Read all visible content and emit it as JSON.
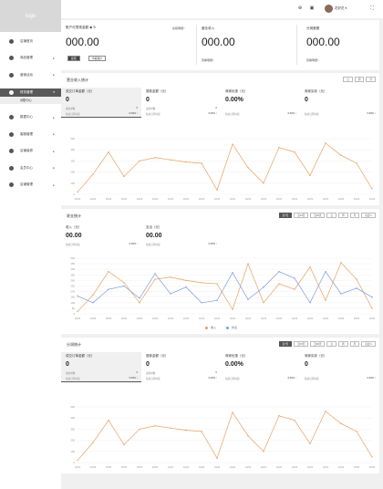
{
  "sidebar": {
    "logo": "logo",
    "items": [
      {
        "label": "店铺首页",
        "icon": "home-icon",
        "arrow": ""
      },
      {
        "label": "商品管理",
        "icon": "goods-icon",
        "arrow": "▸"
      },
      {
        "label": "营销活动",
        "icon": "marketing-icon",
        "arrow": "▸"
      },
      {
        "label": "财务管理",
        "icon": "finance-icon",
        "arrow": "▾"
      },
      {
        "label": "数据中心",
        "icon": "data-icon",
        "arrow": "▸"
      },
      {
        "label": "客服管理",
        "icon": "service-icon",
        "arrow": "▸"
      },
      {
        "label": "店铺装修",
        "icon": "decor-icon",
        "arrow": "▸"
      },
      {
        "label": "会员中心",
        "icon": "member-icon",
        "arrow": "▸"
      },
      {
        "label": "店铺管理",
        "icon": "shop-icon",
        "arrow": "▸"
      }
    ],
    "sub_item": "对账中心"
  },
  "topbar": {
    "username": "花好花",
    "caret": "▾"
  },
  "account": {
    "cards": [
      {
        "label": "账户可提现金额",
        "value": "000.00",
        "link": "余额明细>"
      },
      {
        "label": "营业收入",
        "value": "000.00",
        "link": "查看明细>"
      },
      {
        "label": "分润差额",
        "value": "000.00",
        "link": "查看明细>"
      }
    ],
    "withdraw_btn": "提现",
    "view_btn": "查看账户"
  },
  "revenue": {
    "title": "营业收入统计",
    "tabs": [
      "日",
      "周",
      "月"
    ],
    "metrics": [
      {
        "label": "成交订单金额（元）",
        "value": "0",
        "sub1": "成交单数",
        "r1": "0",
        "sub2": "较前日同时段",
        "r2": "0.00% ↑"
      },
      {
        "label": "退款金额（元）",
        "value": "0",
        "sub1": "退款单数",
        "r1": "0",
        "sub2": "较前日同时段",
        "r2": "0.00% ↑"
      },
      {
        "label": "商家优惠（元）",
        "value": "0.00%",
        "sub1": "",
        "r1": "",
        "sub2": "较前日同时段",
        "r2": "0.00% ↑"
      },
      {
        "label": "商家实收（元）",
        "value": "0",
        "sub1": "",
        "r1": "",
        "sub2": "较前日同时段",
        "r2": "0.00% ↑"
      }
    ]
  },
  "income": {
    "title": "收支统计",
    "tabs": [
      "近7天",
      "近15天",
      "近30天",
      "日",
      "周",
      "月",
      "自定义"
    ],
    "metrics": [
      {
        "label": "收入（元）",
        "value": "00.00",
        "sub": "较前日同时段",
        "r": "0.00% ↑"
      },
      {
        "label": "支出（元）",
        "value": "00.00",
        "sub": "较前日同时段",
        "r": "0.00% ↑"
      }
    ],
    "legend": [
      {
        "name": "收入",
        "color": "#e8a060"
      },
      {
        "name": "支出",
        "color": "#7b9be0"
      }
    ]
  },
  "profit": {
    "title": "分润统计",
    "tabs": [
      "近7天",
      "近15天",
      "近30天",
      "日",
      "周",
      "月",
      "自定义"
    ],
    "metrics": [
      {
        "label": "成交订单金额（元）",
        "value": "0",
        "sub1": "成交单数",
        "r1": "0",
        "sub2": "较前日同时段",
        "r2": "0.00% ↑"
      },
      {
        "label": "退款金额（元）",
        "value": "0",
        "sub1": "退款单数",
        "r1": "0",
        "sub2": "较前日同时段",
        "r2": "0.00% ↑"
      },
      {
        "label": "商家优惠（元）",
        "value": "0.00%",
        "sub1": "",
        "r1": "",
        "sub2": "较前日同时段",
        "r2": "0.00% ↑"
      },
      {
        "label": "商家实收（元）",
        "value": "0",
        "sub1": "",
        "r1": "",
        "sub2": "较前日同时段",
        "r2": "0.00% ↑"
      }
    ]
  },
  "chart_data": [
    {
      "type": "line",
      "ylim": [
        0,
        500
      ],
      "yticks": [
        0,
        100,
        200,
        300,
        400,
        500
      ],
      "categories": [
        "10/22",
        "10/22",
        "10/22",
        "10/22",
        "10/22",
        "10/22",
        "10/22",
        "10/22",
        "10/22",
        "10/22",
        "10/22",
        "10/22",
        "10/22",
        "10/22",
        "10/22",
        "10/22",
        "10/22",
        "10/22",
        "10/22",
        "10/22"
      ],
      "series": [
        {
          "color": "#e8a060",
          "x": [
            0,
            1,
            2,
            3,
            4,
            5,
            6,
            7,
            8,
            9,
            10,
            11,
            12,
            13,
            14,
            15,
            16,
            17,
            18,
            19
          ],
          "values": [
            20,
            180,
            380,
            160,
            300,
            330,
            310,
            290,
            280,
            40,
            450,
            240,
            100,
            420,
            380,
            170,
            460,
            350,
            280,
            50
          ]
        }
      ]
    },
    {
      "type": "line",
      "ylim": [
        0,
        500
      ],
      "yticks": [
        0,
        50,
        100,
        150,
        200,
        250,
        300,
        350,
        400,
        450,
        500
      ],
      "categories": [
        "10/22",
        "10/22",
        "10/22",
        "10/22",
        "10/22",
        "10/22",
        "10/22",
        "10/22",
        "10/22",
        "10/22",
        "10/22",
        "10/22",
        "10/22",
        "10/22",
        "10/22",
        "10/22",
        "10/22",
        "10/22",
        "10/22",
        "10/22"
      ],
      "series": [
        {
          "color": "#e8a060",
          "x": [
            0,
            1,
            2,
            3,
            4,
            5,
            6,
            7,
            8,
            9,
            10,
            11,
            12,
            13,
            14,
            15,
            16,
            17,
            18,
            19
          ],
          "values": [
            20,
            170,
            380,
            280,
            100,
            310,
            330,
            300,
            280,
            270,
            40,
            450,
            100,
            270,
            220,
            420,
            120,
            460,
            310,
            50
          ]
        },
        {
          "color": "#7b9be0",
          "x": [
            0,
            1,
            2,
            3,
            4,
            5,
            6,
            7,
            8,
            9,
            10,
            11,
            12,
            13,
            14,
            15,
            16,
            17,
            18,
            19
          ],
          "values": [
            160,
            100,
            220,
            250,
            140,
            360,
            180,
            240,
            100,
            120,
            370,
            130,
            240,
            380,
            320,
            100,
            380,
            180,
            230,
            150
          ]
        }
      ]
    },
    {
      "type": "line",
      "ylim": [
        0,
        500
      ],
      "yticks": [
        0,
        100,
        200,
        300,
        400,
        500
      ],
      "categories": [
        "10/22",
        "10/22",
        "10/22",
        "10/22",
        "10/22",
        "10/22",
        "10/22",
        "10/22",
        "10/22",
        "10/22",
        "10/22",
        "10/22",
        "10/22",
        "10/22",
        "10/22",
        "10/22",
        "10/22",
        "10/22",
        "10/22",
        "10/22"
      ],
      "series": [
        {
          "color": "#e8a060",
          "x": [
            0,
            1,
            2,
            3,
            4,
            5,
            6,
            7,
            8,
            9,
            10,
            11,
            12,
            13,
            14,
            15,
            16,
            17,
            18,
            19
          ],
          "values": [
            20,
            180,
            380,
            160,
            300,
            330,
            310,
            290,
            280,
            40,
            450,
            240,
            100,
            420,
            380,
            170,
            460,
            350,
            280,
            50
          ]
        }
      ]
    }
  ]
}
